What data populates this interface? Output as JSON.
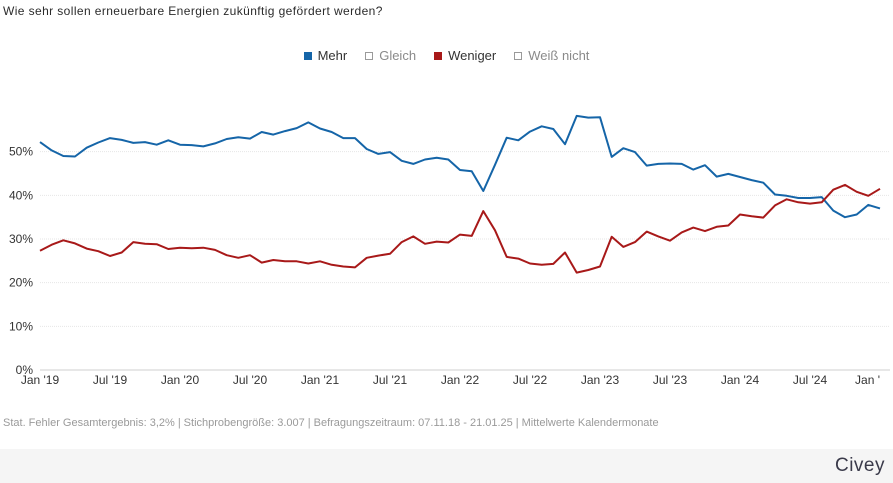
{
  "title": "Wie sehr sollen erneuerbare Energien zukünftig gefördert werden?",
  "legend": [
    {
      "label": "Mehr",
      "color": "#1565a8",
      "active": true
    },
    {
      "label": "Gleich",
      "color": "#9a9a9a",
      "active": false
    },
    {
      "label": "Weniger",
      "color": "#a81919",
      "active": true
    },
    {
      "label": "Weiß nicht",
      "color": "#9a9a9a",
      "active": false
    }
  ],
  "footer": {
    "error": "Stat. Fehler Gesamtergebnis: 3,2%",
    "sample": "Stichprobengröße: 3.007",
    "period": "Befragungszeitraum: 07.11.18 - 21.01.25",
    "note": "Mittelwerte Kalendermonate"
  },
  "brand": "Civey",
  "chart_data": {
    "type": "line",
    "title": "Wie sehr sollen erneuerbare Energien zukünftig gefördert werden?",
    "xlabel": "",
    "ylabel": "",
    "ylim": [
      0,
      60
    ],
    "y_ticks": [
      "0%",
      "10%",
      "20%",
      "30%",
      "40%",
      "50%"
    ],
    "x_tick_labels": [
      "Jan '19",
      "Jul '19",
      "Jan '20",
      "Jul '20",
      "Jan '21",
      "Jul '21",
      "Jan '22",
      "Jul '22",
      "Jan '23",
      "Jul '23",
      "Jan '24",
      "Jul '24",
      "Jan '"
    ],
    "grid": true,
    "legend_position": "top-center",
    "x_start": "2019-01",
    "series": [
      {
        "name": "Mehr",
        "color": "#1565a8",
        "values": [
          52.2,
          50.3,
          49.0,
          48.9,
          50.9,
          52.1,
          53.1,
          52.7,
          52.0,
          52.2,
          51.6,
          52.6,
          51.6,
          51.5,
          51.2,
          51.9,
          52.9,
          53.3,
          53.0,
          54.5,
          53.9,
          54.7,
          55.4,
          56.7,
          55.3,
          54.5,
          53.1,
          53.1,
          50.6,
          49.5,
          49.9,
          47.9,
          47.2,
          48.2,
          48.6,
          48.2,
          45.8,
          45.5,
          41.0,
          47.0,
          53.2,
          52.6,
          54.6,
          55.8,
          55.2,
          51.7,
          58.2,
          57.8,
          57.9,
          48.8,
          50.8,
          49.9,
          46.8,
          47.2,
          47.3,
          47.2,
          45.9,
          46.9,
          44.3,
          44.9,
          44.2,
          43.5,
          42.9,
          40.2,
          39.9,
          39.4,
          39.4,
          39.6,
          36.5,
          35.0,
          35.6,
          37.8,
          37.0
        ]
      },
      {
        "name": "Weniger",
        "color": "#a81919",
        "values": [
          27.3,
          28.7,
          29.7,
          29.0,
          27.8,
          27.2,
          26.1,
          26.9,
          29.3,
          28.9,
          28.8,
          27.7,
          28.0,
          27.9,
          28.0,
          27.5,
          26.3,
          25.7,
          26.3,
          24.6,
          25.2,
          24.9,
          24.9,
          24.4,
          24.9,
          24.1,
          23.7,
          23.5,
          25.7,
          26.2,
          26.6,
          29.3,
          30.6,
          28.9,
          29.4,
          29.2,
          31.0,
          30.7,
          36.4,
          32.0,
          25.9,
          25.5,
          24.4,
          24.1,
          24.3,
          26.9,
          22.3,
          22.9,
          23.7,
          30.5,
          28.2,
          29.3,
          31.7,
          30.6,
          29.6,
          31.5,
          32.6,
          31.8,
          32.8,
          33.1,
          35.6,
          35.2,
          34.9,
          37.7,
          39.1,
          38.4,
          38.1,
          38.4,
          41.3,
          42.4,
          40.8,
          39.9,
          41.5
        ]
      }
    ]
  }
}
